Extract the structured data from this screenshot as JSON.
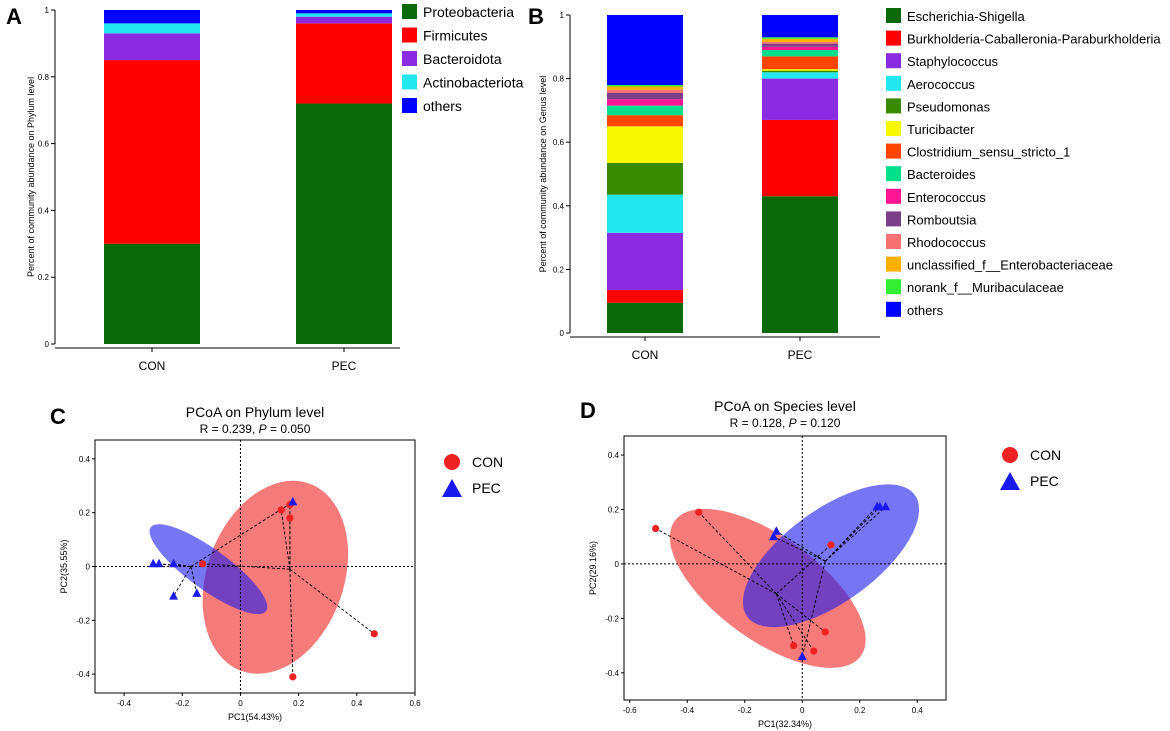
{
  "panels": {
    "A": {
      "letter": "A"
    },
    "B": {
      "letter": "B"
    },
    "C": {
      "letter": "C"
    },
    "D": {
      "letter": "D"
    }
  },
  "colors": {
    "Proteobacteria": "#0a6a0a",
    "Firmicutes": "#ff0000",
    "Bacteroidota": "#8a2be2",
    "Actinobacteriota": "#22e6f0",
    "others": "#0000ff",
    "CON": "#ee2222",
    "PEC": "#1a1aee"
  },
  "chart_data": [
    {
      "id": "A",
      "type": "bar",
      "stacked": true,
      "categories": [
        "CON",
        "PEC"
      ],
      "ylabel": "Percent of community abundance on Phylum level",
      "ylim": [
        0,
        1
      ],
      "yticks": [
        "0",
        "0.2",
        "0.4",
        "0.6",
        "0.8",
        "1"
      ],
      "series": [
        {
          "name": "Proteobacteria",
          "color": "#0a6a0a",
          "values": [
            0.3,
            0.72
          ]
        },
        {
          "name": "Firmicutes",
          "color": "#ff0000",
          "values": [
            0.55,
            0.24
          ]
        },
        {
          "name": "Bacteroidota",
          "color": "#8a2be2",
          "values": [
            0.08,
            0.02
          ]
        },
        {
          "name": "Actinobacteriota",
          "color": "#22e6f0",
          "values": [
            0.03,
            0.01
          ]
        },
        {
          "name": "others",
          "color": "#0000ff",
          "values": [
            0.04,
            0.01
          ]
        }
      ]
    },
    {
      "id": "B",
      "type": "bar",
      "stacked": true,
      "categories": [
        "CON",
        "PEC"
      ],
      "ylabel": "Percent of community abundance on Genus level",
      "ylim": [
        0,
        1
      ],
      "yticks": [
        "0",
        "0.2",
        "0.4",
        "0.6",
        "0.8",
        "1"
      ],
      "series": [
        {
          "name": "Escherichia-Shigella",
          "color": "#0a6a0a",
          "values": [
            0.095,
            0.43
          ]
        },
        {
          "name": "Burkholderia-Caballeronia-Paraburkholderia",
          "color": "#ff0000",
          "values": [
            0.04,
            0.24
          ]
        },
        {
          "name": "Staphylococcus",
          "color": "#8a2be2",
          "values": [
            0.18,
            0.13
          ]
        },
        {
          "name": "Aerococcus",
          "color": "#22e6f0",
          "values": [
            0.12,
            0.02
          ]
        },
        {
          "name": "Pseudomonas",
          "color": "#3a8a00",
          "values": [
            0.1,
            0.005
          ]
        },
        {
          "name": "Turicibacter",
          "color": "#f8f800",
          "values": [
            0.115,
            0.005
          ]
        },
        {
          "name": "Clostridium_sensu_stricto_1",
          "color": "#ff4500",
          "values": [
            0.035,
            0.04
          ]
        },
        {
          "name": "Bacteroides",
          "color": "#00e08a",
          "values": [
            0.03,
            0.02
          ]
        },
        {
          "name": "Enterococcus",
          "color": "#ff1493",
          "values": [
            0.02,
            0.01
          ]
        },
        {
          "name": "Romboutsia",
          "color": "#7b3f8a",
          "values": [
            0.02,
            0.01
          ]
        },
        {
          "name": "Rhodococcus",
          "color": "#f87070",
          "values": [
            0.01,
            0.005
          ]
        },
        {
          "name": "unclassified_f__Enterobacteriaceae",
          "color": "#ffb000",
          "values": [
            0.01,
            0.01
          ]
        },
        {
          "name": "norank_f__Muribaculaceae",
          "color": "#33ee33",
          "values": [
            0.005,
            0.005
          ]
        },
        {
          "name": "others",
          "color": "#0000ff",
          "values": [
            0.22,
            0.07
          ]
        }
      ]
    },
    {
      "id": "C",
      "type": "scatter",
      "title": "PCoA on Phylum level",
      "stat_prefix": "R = 0.239, ",
      "stat_p_letter": "P",
      "stat_suffix": " = 0.050",
      "xlabel": "PC1(54.43%)",
      "ylabel": "PC2(35.55%)",
      "xlim": [
        -0.5,
        0.6
      ],
      "ylim": [
        -0.47,
        0.47
      ],
      "xticks": [
        -0.4,
        -0.2,
        0,
        0.2,
        0.4,
        0.6
      ],
      "yticks": [
        -0.4,
        -0.2,
        0,
        0.2,
        0.4
      ],
      "series": [
        {
          "name": "CON",
          "marker": "circle",
          "color": "#ee2222",
          "centroid": [
            0.17,
            -0.01
          ],
          "ellipse": {
            "cx": 0.12,
            "cy": -0.04,
            "rx": 0.235,
            "ry": 0.37,
            "angle": 20
          },
          "points": [
            [
              0.14,
              0.21
            ],
            [
              0.17,
              0.18
            ],
            [
              0.17,
              0.23
            ],
            [
              -0.13,
              0.01
            ],
            [
              0.46,
              -0.25
            ],
            [
              0.18,
              -0.41
            ]
          ]
        },
        {
          "name": "PEC",
          "marker": "triangle",
          "color": "#1a1aee",
          "centroid": [
            -0.17,
            0.0
          ],
          "ellipse": {
            "cx": -0.11,
            "cy": -0.01,
            "rx": 0.245,
            "ry": 0.075,
            "angle": 36
          },
          "points": [
            [
              -0.3,
              0.01
            ],
            [
              -0.28,
              0.01
            ],
            [
              -0.23,
              0.01
            ],
            [
              -0.23,
              -0.11
            ],
            [
              -0.15,
              -0.1
            ],
            [
              0.18,
              0.24
            ]
          ]
        }
      ]
    },
    {
      "id": "D",
      "type": "scatter",
      "title": "PCoA on Species level",
      "stat_prefix": "R = 0.128, ",
      "stat_p_letter": "P",
      "stat_suffix": " = 0.120",
      "xlabel": "PC1(32.34%)",
      "ylabel": "PC2(29.16%)",
      "xlim": [
        -0.62,
        0.5
      ],
      "ylim": [
        -0.5,
        0.47
      ],
      "xticks": [
        -0.6,
        -0.4,
        -0.2,
        0,
        0.2,
        0.4
      ],
      "yticks": [
        -0.4,
        -0.2,
        0,
        0.2,
        0.4
      ],
      "series": [
        {
          "name": "CON",
          "marker": "circle",
          "color": "#ee2222",
          "centroid": [
            -0.09,
            -0.11
          ],
          "ellipse": {
            "cx": -0.12,
            "cy": -0.09,
            "rx": 0.4,
            "ry": 0.19,
            "angle": 36
          },
          "points": [
            [
              -0.51,
              0.13
            ],
            [
              -0.36,
              0.19
            ],
            [
              0.1,
              0.07
            ],
            [
              0.08,
              -0.25
            ],
            [
              0.04,
              -0.32
            ],
            [
              -0.03,
              -0.3
            ]
          ]
        },
        {
          "name": "PEC",
          "marker": "triangle",
          "color": "#1a1aee",
          "centroid": [
            0.08,
            0.01
          ],
          "ellipse": {
            "cx": 0.1,
            "cy": 0.03,
            "rx": 0.36,
            "ry": 0.17,
            "angle": -36
          },
          "points": [
            [
              -0.1,
              0.1
            ],
            [
              -0.09,
              0.12
            ],
            [
              0.26,
              0.21
            ],
            [
              0.27,
              0.21
            ],
            [
              0.29,
              0.21
            ],
            [
              0.0,
              -0.34
            ]
          ]
        }
      ]
    }
  ]
}
